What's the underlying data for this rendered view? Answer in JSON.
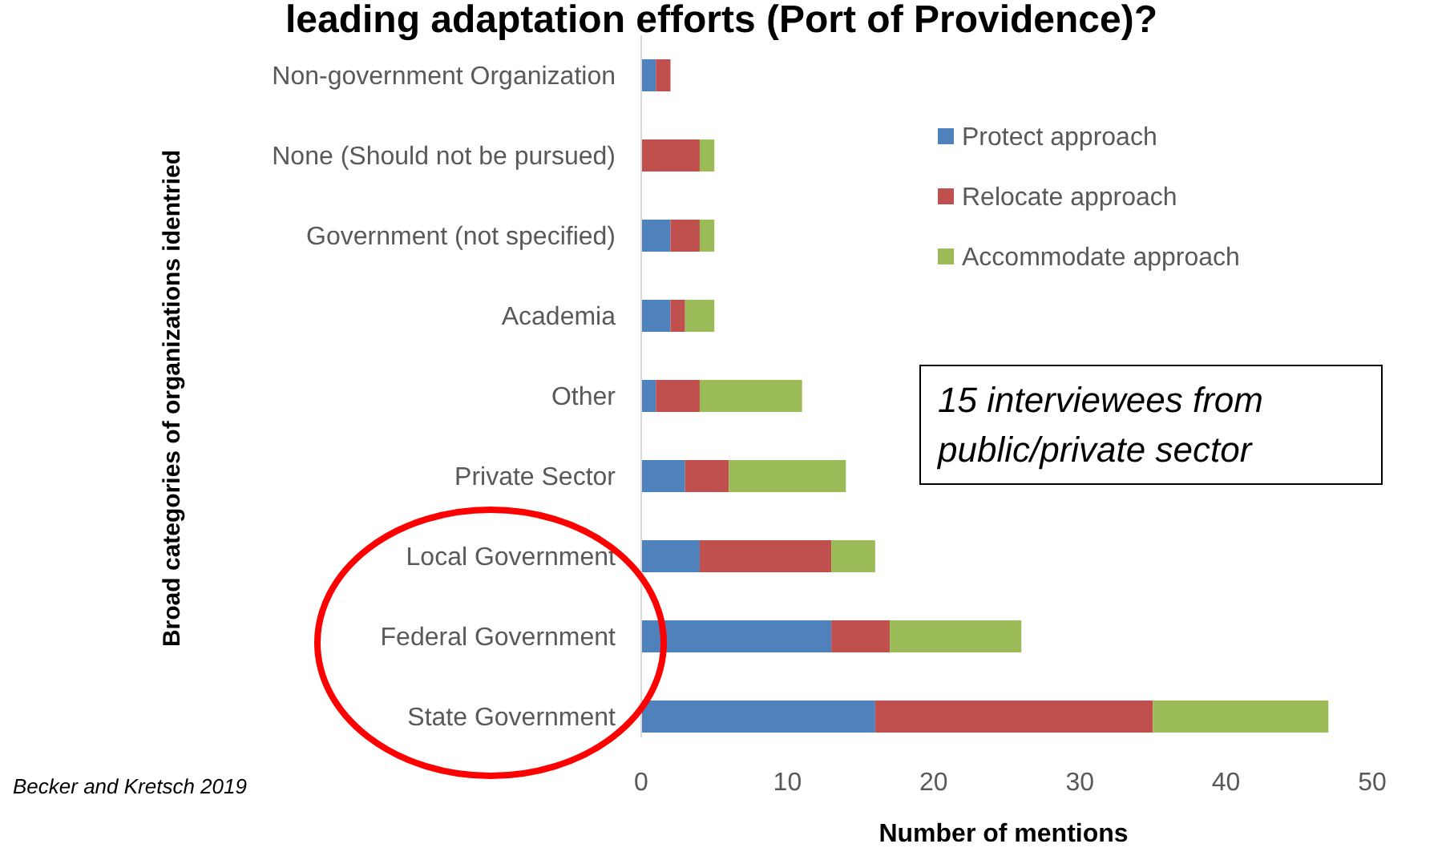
{
  "chart_data": {
    "type": "bar",
    "orientation": "horizontal",
    "stacked": true,
    "title": "leading adaptation efforts (Port of Providence)?",
    "xlabel": "Number of mentions",
    "ylabel": "Broad categories of organizations identried",
    "categories": [
      "Non-government Organization",
      "None (Should not be pursued)",
      "Government (not specified)",
      "Academia",
      "Other",
      "Private Sector",
      "Local Government",
      "Federal Government",
      "State Government"
    ],
    "series": [
      {
        "name": "Protect approach",
        "color": "#4f81bd",
        "values": [
          1,
          0,
          2,
          2,
          1,
          3,
          4,
          13,
          16
        ]
      },
      {
        "name": "Relocate approach",
        "color": "#c0504d",
        "values": [
          1,
          4,
          2,
          1,
          3,
          3,
          9,
          4,
          19
        ]
      },
      {
        "name": "Accommodate approach",
        "color": "#9bbb59",
        "values": [
          0,
          1,
          1,
          2,
          7,
          8,
          3,
          9,
          12
        ]
      }
    ],
    "xlim": [
      0,
      50
    ],
    "xticks": [
      0,
      10,
      20,
      30,
      40,
      50
    ],
    "grid": false,
    "legend": "top right",
    "annotations": [
      "15 interviewees from public/private sector",
      "Becker and Kretsch 2019"
    ]
  }
}
